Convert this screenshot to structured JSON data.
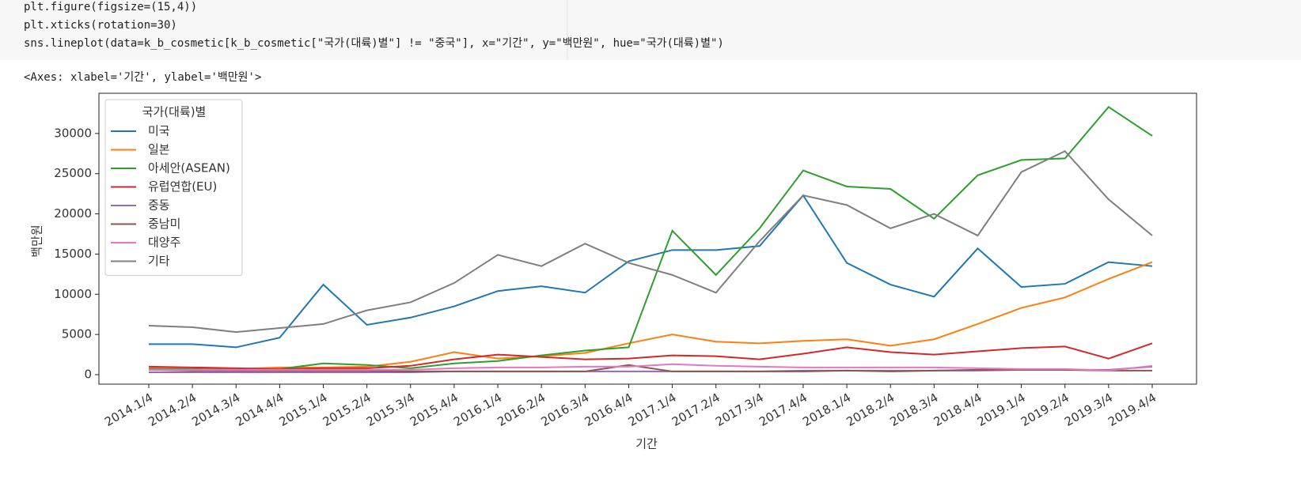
{
  "code_cell": {
    "lines": [
      "plt.figure(figsize=(15,4))",
      "plt.xticks(rotation=30)",
      "sns.lineplot(data=k_b_cosmetic[k_b_cosmetic[\"국가(대륙)별\"] != \"중국\"], x=\"기간\", y=\"백만원\", hue=\"국가(대륙)별\")"
    ]
  },
  "output_text": "<Axes: xlabel='기간', ylabel='백만원'>",
  "chart_data": {
    "type": "line",
    "x_label": "기간",
    "y_label": "백만원",
    "categories": [
      "2014.1/4",
      "2014.2/4",
      "2014.3/4",
      "2014.4/4",
      "2015.1/4",
      "2015.2/4",
      "2015.3/4",
      "2015.4/4",
      "2016.1/4",
      "2016.2/4",
      "2016.3/4",
      "2016.4/4",
      "2017.1/4",
      "2017.2/4",
      "2017.3/4",
      "2017.4/4",
      "2018.1/4",
      "2018.2/4",
      "2018.3/4",
      "2018.4/4",
      "2019.1/4",
      "2019.2/4",
      "2019.3/4",
      "2019.4/4"
    ],
    "ylim": [
      -1180,
      35000
    ],
    "yticks": [
      0,
      5000,
      10000,
      15000,
      20000,
      25000,
      30000
    ],
    "legend_title": "국가(대륙)별",
    "legend_position": "upper left",
    "series": [
      {
        "name": "미국",
        "color": "#1f77b4",
        "values": [
          3800,
          3800,
          3400,
          4600,
          11200,
          6200,
          7100,
          8500,
          10400,
          11000,
          10200,
          14100,
          15500,
          15500,
          16000,
          22300,
          13900,
          11200,
          9700,
          15700,
          10900,
          11300,
          14000,
          13500
        ]
      },
      {
        "name": "일본",
        "color": "#ff7f0e",
        "values": [
          800,
          700,
          700,
          900,
          900,
          1000,
          1600,
          2800,
          2000,
          2300,
          2700,
          3900,
          5000,
          4100,
          3900,
          4200,
          4400,
          3600,
          4400,
          6300,
          8300,
          9600,
          11900,
          14000
        ]
      },
      {
        "name": "아세안(ASEAN)",
        "color": "#2ca02c",
        "values": [
          700,
          700,
          600,
          700,
          1400,
          1200,
          800,
          1400,
          1700,
          2400,
          3000,
          3400,
          17900,
          12400,
          18200,
          25400,
          23400,
          23100,
          19400,
          24800,
          26700,
          26900,
          33300,
          29700
        ]
      },
      {
        "name": "유럽연합(EU)",
        "color": "#d62728",
        "values": [
          1000,
          900,
          800,
          700,
          800,
          800,
          1100,
          1900,
          2500,
          2200,
          1900,
          2000,
          2400,
          2300,
          1900,
          2600,
          3400,
          2800,
          2500,
          2900,
          3300,
          3500,
          2000,
          3900
        ]
      },
      {
        "name": "중동",
        "color": "#9467bd",
        "values": [
          300,
          300,
          300,
          300,
          300,
          300,
          300,
          400,
          400,
          400,
          400,
          400,
          400,
          400,
          400,
          500,
          500,
          500,
          500,
          500,
          600,
          600,
          600,
          1000
        ]
      },
      {
        "name": "중남미",
        "color": "#8c564b",
        "values": [
          600,
          500,
          500,
          500,
          500,
          500,
          400,
          400,
          400,
          400,
          400,
          1200,
          400,
          400,
          400,
          400,
          500,
          400,
          500,
          600,
          600,
          600,
          500,
          500
        ]
      },
      {
        "name": "대양주",
        "color": "#e377c2",
        "values": [
          600,
          600,
          600,
          600,
          600,
          600,
          600,
          800,
          900,
          900,
          1000,
          1000,
          1300,
          1100,
          1000,
          900,
          900,
          900,
          900,
          800,
          700,
          700,
          500,
          1100
        ]
      },
      {
        "name": "기타",
        "color": "#7f7f7f",
        "values": [
          6100,
          5900,
          5300,
          5800,
          6300,
          8000,
          9000,
          11400,
          14900,
          13500,
          16300,
          13900,
          12400,
          10200,
          16600,
          22300,
          21100,
          18200,
          20000,
          17300,
          25200,
          27800,
          21800,
          17300
        ]
      }
    ]
  }
}
